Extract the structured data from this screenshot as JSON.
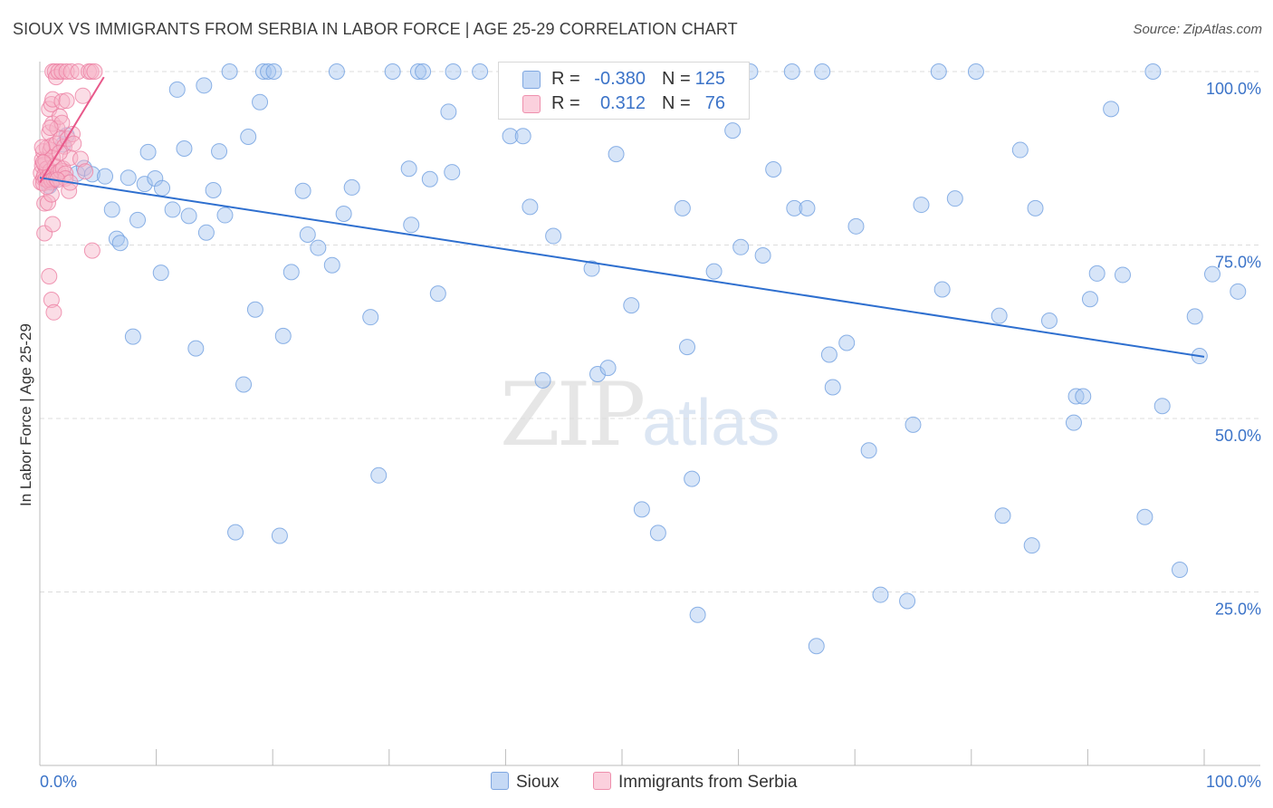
{
  "header": {
    "title": "SIOUX VS IMMIGRANTS FROM SERBIA IN LABOR FORCE | AGE 25-29 CORRELATION CHART",
    "source": "Source: ZipAtlas.com"
  },
  "watermark": {
    "zip": "ZIP",
    "atlas": "atlas"
  },
  "legend": {
    "rows": [
      {
        "r_label": "R =",
        "r_value": "-0.380",
        "n_label": "N =",
        "n_value": "125",
        "color": "#a7c6f0"
      },
      {
        "r_label": "R =",
        "r_value": "0.312",
        "n_label": "N =",
        "n_value": "76",
        "color": "#f7b3c8"
      }
    ]
  },
  "bottom_legend": {
    "sioux": "Sioux",
    "serbia": "Immigrants from Serbia"
  },
  "axis_text": {
    "ylabel": "In Labor Force | Age 25-29",
    "x_left": "0.0%",
    "x_right": "100.0%",
    "y_ticks": [
      "100.0%",
      "75.0%",
      "50.0%",
      "25.0%"
    ]
  },
  "colors": {
    "sioux_fill": "#a7c6f0",
    "sioux_stroke": "#6f9fe0",
    "sioux_line": "#2e6fcf",
    "serbia_fill": "#f7b3c8",
    "serbia_stroke": "#ec7fa2",
    "serbia_line": "#e8588a",
    "tick_text": "#3b73c8",
    "grid": "#dcdcdc"
  },
  "chart_data": {
    "type": "scatter",
    "title": "SIOUX VS IMMIGRANTS FROM SERBIA IN LABOR FORCE | AGE 25-29 CORRELATION CHART",
    "xlabel": "",
    "ylabel": "In Labor Force | Age 25-29",
    "xlim": [
      0,
      100
    ],
    "ylim": [
      0,
      100
    ],
    "y_ticks": [
      25,
      50,
      75,
      100
    ],
    "grid": true,
    "legend_position": "top-center",
    "series": [
      {
        "name": "Sioux",
        "r": -0.38,
        "n": 125,
        "trend": {
          "x": [
            0,
            100
          ],
          "y": [
            84.7,
            58.9
          ]
        },
        "points": [
          [
            0.5,
            84.5
          ],
          [
            0.8,
            83.5
          ],
          [
            1.0,
            84.0
          ],
          [
            2.0,
            89.5
          ],
          [
            2.3,
            90.8
          ],
          [
            3.2,
            85.3
          ],
          [
            3.8,
            86.1
          ],
          [
            4.5,
            85.2
          ],
          [
            5.6,
            84.9
          ],
          [
            6.2,
            80.1
          ],
          [
            6.6,
            75.9
          ],
          [
            6.9,
            75.3
          ],
          [
            7.6,
            84.7
          ],
          [
            8.0,
            61.8
          ],
          [
            8.4,
            78.6
          ],
          [
            9.0,
            83.8
          ],
          [
            9.3,
            88.4
          ],
          [
            9.9,
            84.6
          ],
          [
            10.4,
            71.0
          ],
          [
            10.5,
            83.2
          ],
          [
            11.4,
            80.1
          ],
          [
            11.8,
            97.4
          ],
          [
            12.4,
            88.9
          ],
          [
            12.8,
            79.2
          ],
          [
            13.4,
            60.1
          ],
          [
            14.1,
            98.0
          ],
          [
            14.3,
            76.8
          ],
          [
            14.9,
            82.9
          ],
          [
            15.4,
            88.5
          ],
          [
            15.9,
            79.3
          ],
          [
            16.3,
            100
          ],
          [
            16.8,
            33.6
          ],
          [
            17.5,
            54.9
          ],
          [
            17.9,
            90.6
          ],
          [
            18.5,
            65.7
          ],
          [
            18.9,
            95.6
          ],
          [
            19.2,
            100
          ],
          [
            19.6,
            100
          ],
          [
            20.1,
            100
          ],
          [
            20.6,
            33.1
          ],
          [
            20.9,
            61.9
          ],
          [
            21.6,
            71.1
          ],
          [
            22.6,
            82.8
          ],
          [
            23.0,
            76.5
          ],
          [
            23.9,
            74.6
          ],
          [
            25.1,
            72.1
          ],
          [
            25.5,
            100
          ],
          [
            26.1,
            79.5
          ],
          [
            26.8,
            83.3
          ],
          [
            28.4,
            64.6
          ],
          [
            29.1,
            41.8
          ],
          [
            30.3,
            100
          ],
          [
            31.7,
            86.0
          ],
          [
            31.9,
            77.9
          ],
          [
            32.5,
            100
          ],
          [
            32.9,
            100
          ],
          [
            33.5,
            84.5
          ],
          [
            34.2,
            68.0
          ],
          [
            35.1,
            94.2
          ],
          [
            35.4,
            85.5
          ],
          [
            35.5,
            100
          ],
          [
            37.8,
            100
          ],
          [
            40.4,
            90.7
          ],
          [
            41.5,
            90.7
          ],
          [
            42.1,
            80.5
          ],
          [
            43.2,
            55.5
          ],
          [
            44.1,
            76.3
          ],
          [
            45.1,
            100
          ],
          [
            47.4,
            71.6
          ],
          [
            47.9,
            56.4
          ],
          [
            48.8,
            57.3
          ],
          [
            49.5,
            88.1
          ],
          [
            50.8,
            66.3
          ],
          [
            51.7,
            36.9
          ],
          [
            52.0,
            100
          ],
          [
            53.0,
            100
          ],
          [
            53.1,
            33.5
          ],
          [
            55.2,
            80.3
          ],
          [
            55.6,
            60.3
          ],
          [
            56.0,
            41.3
          ],
          [
            56.5,
            21.7
          ],
          [
            57.4,
            100
          ],
          [
            57.9,
            71.2
          ],
          [
            59.5,
            91.5
          ],
          [
            60.2,
            74.7
          ],
          [
            61.0,
            100
          ],
          [
            62.1,
            73.5
          ],
          [
            63.0,
            85.9
          ],
          [
            64.6,
            100
          ],
          [
            64.8,
            80.3
          ],
          [
            65.9,
            80.3
          ],
          [
            66.7,
            17.2
          ],
          [
            67.2,
            100
          ],
          [
            67.8,
            59.2
          ],
          [
            68.1,
            54.5
          ],
          [
            69.3,
            60.9
          ],
          [
            70.1,
            77.7
          ],
          [
            71.2,
            45.4
          ],
          [
            72.2,
            24.6
          ],
          [
            74.5,
            23.7
          ],
          [
            75.0,
            49.1
          ],
          [
            75.7,
            80.8
          ],
          [
            77.2,
            100
          ],
          [
            77.5,
            68.6
          ],
          [
            78.6,
            81.7
          ],
          [
            80.4,
            100
          ],
          [
            82.4,
            64.8
          ],
          [
            82.7,
            36.0
          ],
          [
            84.2,
            88.7
          ],
          [
            85.2,
            31.7
          ],
          [
            85.5,
            80.3
          ],
          [
            86.7,
            64.1
          ],
          [
            88.8,
            49.4
          ],
          [
            89.0,
            53.2
          ],
          [
            89.6,
            53.2
          ],
          [
            90.2,
            67.2
          ],
          [
            90.8,
            70.9
          ],
          [
            92.0,
            94.6
          ],
          [
            93.0,
            70.7
          ],
          [
            94.9,
            35.8
          ],
          [
            95.6,
            100
          ],
          [
            96.4,
            51.8
          ],
          [
            97.9,
            28.2
          ],
          [
            99.2,
            64.7
          ],
          [
            99.6,
            59.0
          ],
          [
            100.7,
            70.8
          ],
          [
            102.9,
            68.3
          ]
        ]
      },
      {
        "name": "Immigrants from Serbia",
        "r": 0.312,
        "n": 76,
        "trend": {
          "x": [
            0,
            5.5
          ],
          "y": [
            84.0,
            99.2
          ]
        },
        "points": [
          [
            0.1,
            84.0
          ],
          [
            0.1,
            85.4
          ],
          [
            0.2,
            86.4
          ],
          [
            0.2,
            87.3
          ],
          [
            0.3,
            88.5
          ],
          [
            0.3,
            84.6
          ],
          [
            0.3,
            83.9
          ],
          [
            0.4,
            86.6
          ],
          [
            0.4,
            85.1
          ],
          [
            0.4,
            81.0
          ],
          [
            0.4,
            76.7
          ],
          [
            0.5,
            84.5
          ],
          [
            0.5,
            87.2
          ],
          [
            0.6,
            89.0
          ],
          [
            0.6,
            86.0
          ],
          [
            0.7,
            84.8
          ],
          [
            0.7,
            81.1
          ],
          [
            0.8,
            91.2
          ],
          [
            0.8,
            94.6
          ],
          [
            0.8,
            84.1
          ],
          [
            0.8,
            70.5
          ],
          [
            0.9,
            88.7
          ],
          [
            0.9,
            85.7
          ],
          [
            1.0,
            95.3
          ],
          [
            1.0,
            89.3
          ],
          [
            1.0,
            84.3
          ],
          [
            1.0,
            82.3
          ],
          [
            1.0,
            67.1
          ],
          [
            1.1,
            100
          ],
          [
            1.1,
            92.5
          ],
          [
            1.1,
            96.0
          ],
          [
            1.1,
            87.6
          ],
          [
            1.1,
            78.0
          ],
          [
            1.2,
            65.3
          ],
          [
            1.2,
            84.5
          ],
          [
            1.3,
            86.4
          ],
          [
            1.3,
            100
          ],
          [
            1.4,
            99.2
          ],
          [
            1.4,
            89.6
          ],
          [
            1.4,
            84.6
          ],
          [
            1.5,
            91.8
          ],
          [
            1.6,
            100
          ],
          [
            1.6,
            85.5
          ],
          [
            1.7,
            93.5
          ],
          [
            1.8,
            90.3
          ],
          [
            1.8,
            85.7
          ],
          [
            1.9,
            95.7
          ],
          [
            1.9,
            92.6
          ],
          [
            1.9,
            100
          ],
          [
            2.0,
            86.0
          ],
          [
            2.1,
            89.2
          ],
          [
            2.2,
            85.3
          ],
          [
            2.2,
            84.6
          ],
          [
            2.3,
            95.8
          ],
          [
            2.3,
            100
          ],
          [
            2.4,
            90.3
          ],
          [
            2.5,
            82.8
          ],
          [
            2.6,
            87.6
          ],
          [
            2.7,
            100
          ],
          [
            2.8,
            91.0
          ],
          [
            2.9,
            89.6
          ],
          [
            3.3,
            100
          ],
          [
            3.5,
            87.4
          ],
          [
            3.7,
            96.5
          ],
          [
            3.9,
            85.6
          ],
          [
            4.2,
            100
          ],
          [
            4.4,
            100
          ],
          [
            4.5,
            74.2
          ],
          [
            4.7,
            100
          ],
          [
            0.2,
            89.1
          ],
          [
            0.6,
            83.4
          ],
          [
            1.5,
            84.4
          ],
          [
            0.9,
            91.9
          ],
          [
            0.3,
            86.9
          ],
          [
            1.7,
            88.3
          ],
          [
            2.6,
            84.0
          ]
        ]
      }
    ]
  }
}
